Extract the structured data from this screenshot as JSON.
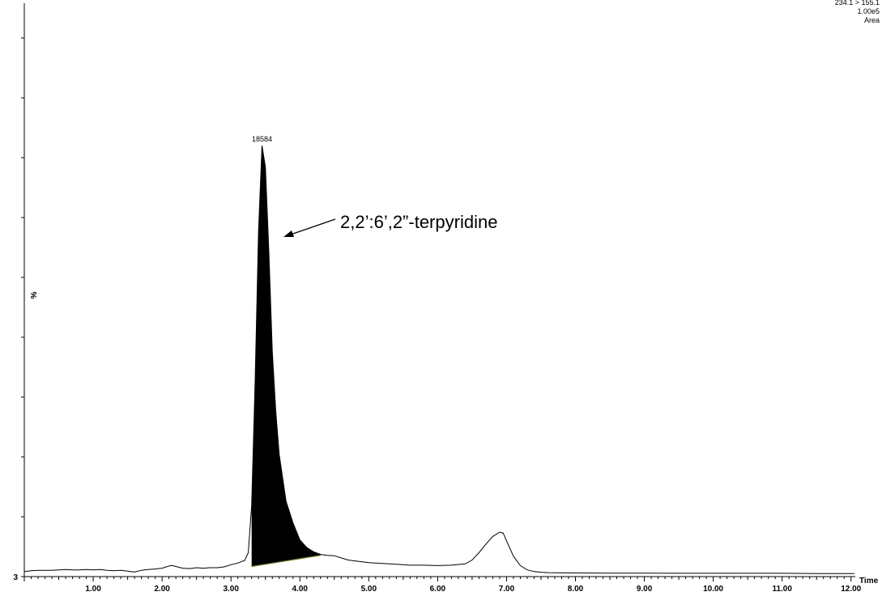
{
  "chart_data": {
    "type": "line",
    "xlabel": "Time",
    "ylabel": "%",
    "xlim": [
      0,
      12.05
    ],
    "x_ticks": [
      "1.00",
      "2.00",
      "3.00",
      "4.00",
      "5.00",
      "6.00",
      "7.00",
      "8.00",
      "9.00",
      "10.00",
      "11.00",
      "12.00"
    ],
    "y_min_label": "3",
    "info": {
      "line1": "234.1 > 155.1",
      "line2": "1.00e5",
      "line3": "Area"
    },
    "peak_label": "18584",
    "annotation": "2,2’:6’,2”-terpyridine",
    "series": [
      {
        "x": [
          0.0,
          0.1,
          0.2,
          0.3,
          0.4,
          0.5,
          0.6,
          0.7,
          0.8,
          0.9,
          1.0,
          1.1,
          1.2,
          1.3,
          1.4,
          1.5,
          1.6,
          1.7,
          1.8,
          1.9,
          2.0,
          2.1,
          2.15,
          2.2,
          2.3,
          2.4,
          2.5,
          2.6,
          2.7,
          2.8,
          2.9,
          3.0,
          3.1,
          3.2,
          3.25,
          3.3,
          3.35,
          3.4,
          3.45,
          3.5,
          3.55,
          3.6,
          3.65,
          3.7,
          3.8,
          3.9,
          4.0,
          4.1,
          4.2,
          4.3,
          4.4,
          4.5,
          4.6,
          4.7,
          4.8,
          5.0,
          5.2,
          5.4,
          5.6,
          5.8,
          6.0,
          6.2,
          6.4,
          6.5,
          6.6,
          6.7,
          6.8,
          6.9,
          6.95,
          7.0,
          7.1,
          7.2,
          7.3,
          7.4,
          7.5,
          7.6,
          7.8,
          8.0,
          8.5,
          9.0,
          9.5,
          10.0,
          10.5,
          11.0,
          11.5,
          12.0,
          12.05
        ],
        "y": [
          0.6,
          0.8,
          0.9,
          0.9,
          0.9,
          1.0,
          1.1,
          1.0,
          1.0,
          1.1,
          1.0,
          1.1,
          0.9,
          0.8,
          0.9,
          0.7,
          0.5,
          0.9,
          1.1,
          1.2,
          1.4,
          1.9,
          2.0,
          1.8,
          1.4,
          1.3,
          1.5,
          1.4,
          1.5,
          1.5,
          1.7,
          2.2,
          2.6,
          3.2,
          5.0,
          16.0,
          45.0,
          80.0,
          100.0,
          95.0,
          75.0,
          52.0,
          38.0,
          28.0,
          17.0,
          12.0,
          8.0,
          6.2,
          5.2,
          4.6,
          4.4,
          4.3,
          3.8,
          3.3,
          3.1,
          2.7,
          2.5,
          2.3,
          2.1,
          2.1,
          2.0,
          2.1,
          2.4,
          3.3,
          5.0,
          7.0,
          8.8,
          9.8,
          9.6,
          7.8,
          4.2,
          2.0,
          1.0,
          0.6,
          0.45,
          0.35,
          0.3,
          0.28,
          0.25,
          0.22,
          0.2,
          0.2,
          0.2,
          0.2,
          0.15,
          0.15,
          0.15
        ]
      }
    ],
    "baseline": {
      "x": [
        3.3,
        4.3
      ],
      "y": [
        1.8,
        4.4
      ]
    },
    "shade_range": [
      3.3,
      4.3
    ]
  }
}
